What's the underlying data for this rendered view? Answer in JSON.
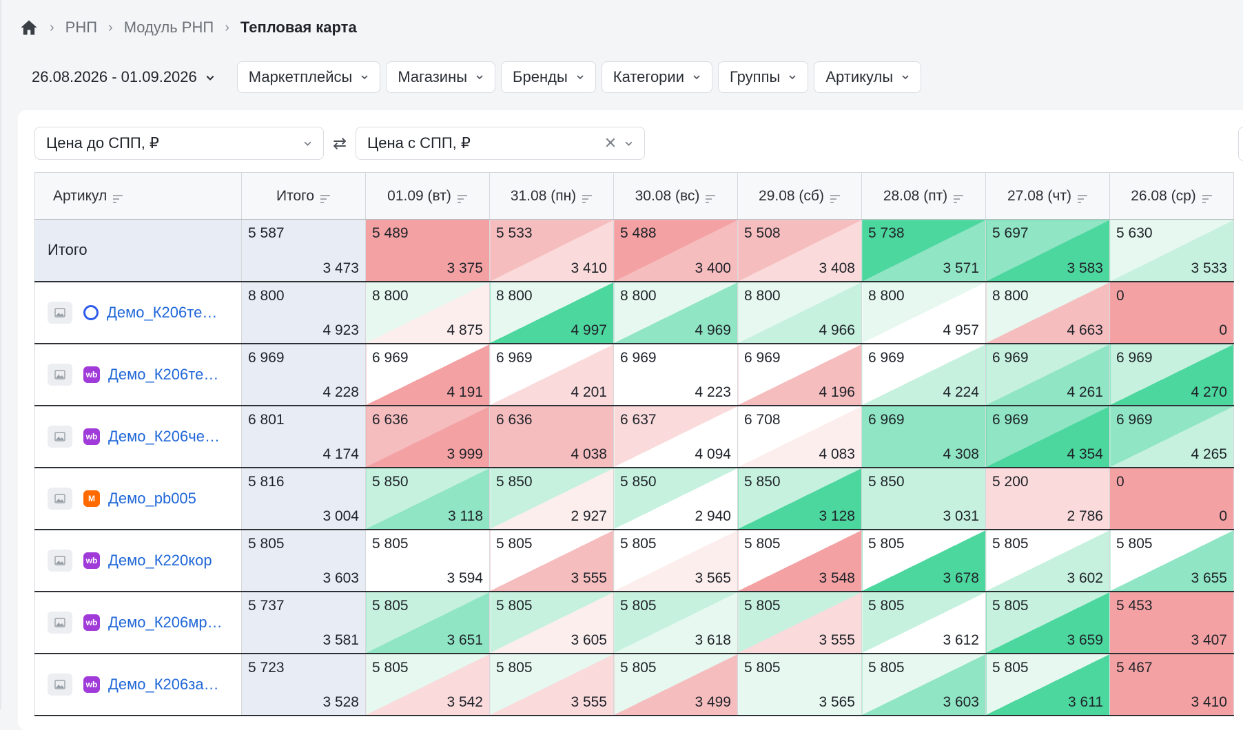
{
  "colors": {
    "total": "#e8edf5",
    "g3": "#4cd79e",
    "g2": "#8fe5c4",
    "g1": "#c6f1df",
    "g0": "#e6f8ef",
    "r3": "#f4a1a3",
    "r2": "#f6bdbf",
    "r1": "#fadadb",
    "r0": "#fdeeee",
    "w": "#ffffff"
  },
  "breadcrumb": {
    "items": [
      "РНП",
      "Модуль РНП"
    ],
    "current": "Тепловая карта"
  },
  "filters": {
    "date_range": "26.08.2026 - 01.09.2026",
    "buttons": [
      "Маркетплейсы",
      "Магазины",
      "Бренды",
      "Категории",
      "Группы",
      "Артикулы"
    ]
  },
  "metrics": {
    "left": "Цена до СПП, ₽",
    "right": "Цена с СПП, ₽",
    "swap": "⇄"
  },
  "table": {
    "columns": [
      "Артикул",
      "Итого",
      "01.09 (вт)",
      "31.08 (пн)",
      "30.08 (вс)",
      "29.08 (сб)",
      "28.08 (пт)",
      "27.08 (чт)",
      "26.08 (ср)"
    ],
    "total_row": {
      "label": "Итого",
      "cells": [
        {
          "top": "5 587",
          "bot": "3 473",
          "ct": "total",
          "cb": "total"
        },
        {
          "top": "5 489",
          "bot": "3 375",
          "ct": "r3",
          "cb": "r3"
        },
        {
          "top": "5 533",
          "bot": "3 410",
          "ct": "r2",
          "cb": "r1"
        },
        {
          "top": "5 488",
          "bot": "3 400",
          "ct": "r3",
          "cb": "r2"
        },
        {
          "top": "5 508",
          "bot": "3 408",
          "ct": "r2",
          "cb": "r1"
        },
        {
          "top": "5 738",
          "bot": "3 571",
          "ct": "g3",
          "cb": "g2"
        },
        {
          "top": "5 697",
          "bot": "3 583",
          "ct": "g2",
          "cb": "g3"
        },
        {
          "top": "5 630",
          "bot": "3 533",
          "ct": "g0",
          "cb": "g1"
        }
      ]
    },
    "rows": [
      {
        "mp": "oz",
        "mp_label": "",
        "name": "Демо_К206те…",
        "cells": [
          {
            "top": "8 800",
            "bot": "4 923",
            "ct": "total",
            "cb": "total"
          },
          {
            "top": "8 800",
            "bot": "4 875",
            "ct": "g0",
            "cb": "r0"
          },
          {
            "top": "8 800",
            "bot": "4 997",
            "ct": "g0",
            "cb": "g3"
          },
          {
            "top": "8 800",
            "bot": "4 969",
            "ct": "g0",
            "cb": "g2"
          },
          {
            "top": "8 800",
            "bot": "4 966",
            "ct": "g0",
            "cb": "g1"
          },
          {
            "top": "8 800",
            "bot": "4 957",
            "ct": "g0",
            "cb": "w"
          },
          {
            "top": "8 800",
            "bot": "4 663",
            "ct": "g0",
            "cb": "r2"
          },
          {
            "top": "0",
            "bot": "0",
            "ct": "r3",
            "cb": "r3"
          }
        ]
      },
      {
        "mp": "wb",
        "mp_label": "wb",
        "name": "Демо_К206те…",
        "cells": [
          {
            "top": "6 969",
            "bot": "4 228",
            "ct": "total",
            "cb": "total"
          },
          {
            "top": "6 969",
            "bot": "4 191",
            "ct": "w",
            "cb": "r3"
          },
          {
            "top": "6 969",
            "bot": "4 201",
            "ct": "w",
            "cb": "r1"
          },
          {
            "top": "6 969",
            "bot": "4 223",
            "ct": "w",
            "cb": "w"
          },
          {
            "top": "6 969",
            "bot": "4 196",
            "ct": "w",
            "cb": "r2"
          },
          {
            "top": "6 969",
            "bot": "4 224",
            "ct": "w",
            "cb": "g1"
          },
          {
            "top": "6 969",
            "bot": "4 261",
            "ct": "g1",
            "cb": "g2"
          },
          {
            "top": "6 969",
            "bot": "4 270",
            "ct": "g1",
            "cb": "g3"
          }
        ]
      },
      {
        "mp": "wb",
        "mp_label": "wb",
        "name": "Демо_К206че…",
        "cells": [
          {
            "top": "6 801",
            "bot": "4 174",
            "ct": "total",
            "cb": "total"
          },
          {
            "top": "6 636",
            "bot": "3 999",
            "ct": "r2",
            "cb": "r3"
          },
          {
            "top": "6 636",
            "bot": "4 038",
            "ct": "r2",
            "cb": "r2"
          },
          {
            "top": "6 637",
            "bot": "4 094",
            "ct": "r1",
            "cb": "w"
          },
          {
            "top": "6 708",
            "bot": "4 083",
            "ct": "w",
            "cb": "r0"
          },
          {
            "top": "6 969",
            "bot": "4 308",
            "ct": "g2",
            "cb": "g2"
          },
          {
            "top": "6 969",
            "bot": "4 354",
            "ct": "g2",
            "cb": "g3"
          },
          {
            "top": "6 969",
            "bot": "4 265",
            "ct": "g2",
            "cb": "g1"
          }
        ]
      },
      {
        "mp": "ya",
        "mp_label": "М",
        "name": "Демо_pb005",
        "cells": [
          {
            "top": "5 816",
            "bot": "3 004",
            "ct": "total",
            "cb": "total"
          },
          {
            "top": "5 850",
            "bot": "3 118",
            "ct": "g1",
            "cb": "g2"
          },
          {
            "top": "5 850",
            "bot": "2 927",
            "ct": "g1",
            "cb": "r0"
          },
          {
            "top": "5 850",
            "bot": "2 940",
            "ct": "g1",
            "cb": "w"
          },
          {
            "top": "5 850",
            "bot": "3 128",
            "ct": "g1",
            "cb": "g3"
          },
          {
            "top": "5 850",
            "bot": "3 031",
            "ct": "g1",
            "cb": "g1"
          },
          {
            "top": "5 200",
            "bot": "2 786",
            "ct": "r1",
            "cb": "r1"
          },
          {
            "top": "0",
            "bot": "0",
            "ct": "r3",
            "cb": "r3"
          }
        ]
      },
      {
        "mp": "wb",
        "mp_label": "wb",
        "name": "Демо_К220кор",
        "cells": [
          {
            "top": "5 805",
            "bot": "3 603",
            "ct": "total",
            "cb": "total"
          },
          {
            "top": "5 805",
            "bot": "3 594",
            "ct": "w",
            "cb": "w"
          },
          {
            "top": "5 805",
            "bot": "3 555",
            "ct": "w",
            "cb": "r2"
          },
          {
            "top": "5 805",
            "bot": "3 565",
            "ct": "w",
            "cb": "r0"
          },
          {
            "top": "5 805",
            "bot": "3 548",
            "ct": "w",
            "cb": "r3"
          },
          {
            "top": "5 805",
            "bot": "3 678",
            "ct": "w",
            "cb": "g3"
          },
          {
            "top": "5 805",
            "bot": "3 602",
            "ct": "w",
            "cb": "g1"
          },
          {
            "top": "5 805",
            "bot": "3 655",
            "ct": "w",
            "cb": "g2"
          }
        ]
      },
      {
        "mp": "wb",
        "mp_label": "wb",
        "name": "Демо_К206мр…",
        "cells": [
          {
            "top": "5 737",
            "bot": "3 581",
            "ct": "total",
            "cb": "total"
          },
          {
            "top": "5 805",
            "bot": "3 651",
            "ct": "g1",
            "cb": "g2"
          },
          {
            "top": "5 805",
            "bot": "3 605",
            "ct": "g1",
            "cb": "r0"
          },
          {
            "top": "5 805",
            "bot": "3 618",
            "ct": "g1",
            "cb": "g0"
          },
          {
            "top": "5 805",
            "bot": "3 555",
            "ct": "g1",
            "cb": "r1"
          },
          {
            "top": "5 805",
            "bot": "3 612",
            "ct": "g1",
            "cb": "w"
          },
          {
            "top": "5 805",
            "bot": "3 659",
            "ct": "g1",
            "cb": "g3"
          },
          {
            "top": "5 453",
            "bot": "3 407",
            "ct": "r3",
            "cb": "r3"
          }
        ]
      },
      {
        "mp": "wb",
        "mp_label": "wb",
        "name": "Демо_К206за…",
        "cells": [
          {
            "top": "5 723",
            "bot": "3 528",
            "ct": "total",
            "cb": "total"
          },
          {
            "top": "5 805",
            "bot": "3 542",
            "ct": "g0",
            "cb": "r1"
          },
          {
            "top": "5 805",
            "bot": "3 555",
            "ct": "g0",
            "cb": "r1"
          },
          {
            "top": "5 805",
            "bot": "3 499",
            "ct": "g0",
            "cb": "r2"
          },
          {
            "top": "5 805",
            "bot": "3 565",
            "ct": "g0",
            "cb": "g0"
          },
          {
            "top": "5 805",
            "bot": "3 603",
            "ct": "g0",
            "cb": "g2"
          },
          {
            "top": "5 805",
            "bot": "3 611",
            "ct": "g0",
            "cb": "g3"
          },
          {
            "top": "5 467",
            "bot": "3 410",
            "ct": "r3",
            "cb": "r3"
          }
        ]
      }
    ]
  }
}
